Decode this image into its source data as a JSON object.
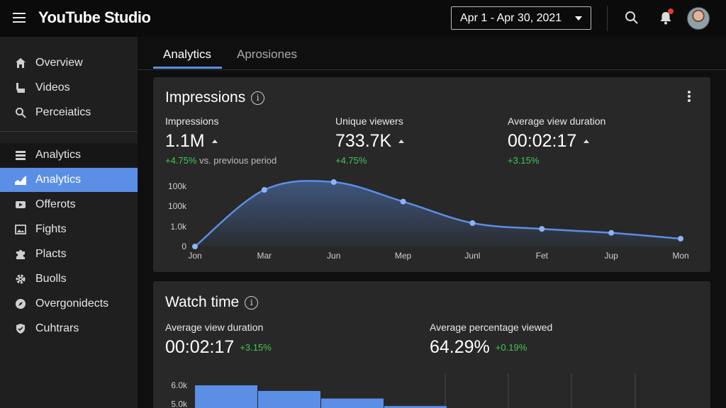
{
  "app": {
    "title": "YouTube Studio"
  },
  "header": {
    "date_range": "Apr 1 - Apr 30, 2021"
  },
  "sidebar": {
    "items": [
      {
        "label": "Overview",
        "icon": "home-icon"
      },
      {
        "label": "Videos",
        "icon": "videos-icon"
      },
      {
        "label": "Perceiatics",
        "icon": "search-icon"
      },
      {
        "label": "Analytics",
        "icon": "table-icon"
      },
      {
        "label": "Analytics",
        "icon": "analytics-icon"
      },
      {
        "label": "Offerots",
        "icon": "video-icon"
      },
      {
        "label": "Fights",
        "icon": "image-icon"
      },
      {
        "label": "Placts",
        "icon": "puzzle-icon"
      },
      {
        "label": "Buolls",
        "icon": "gear-icon"
      },
      {
        "label": "Overgonidects",
        "icon": "compass-icon"
      },
      {
        "label": "Cuhtrars",
        "icon": "shield-icon"
      }
    ]
  },
  "tabs": [
    {
      "label": "Analytics"
    },
    {
      "label": "Aprosiones"
    }
  ],
  "impressions_card": {
    "title": "Impressions",
    "metrics": [
      {
        "label": "Impressions",
        "value": "1.1M",
        "change": "+4.75%",
        "suffix": " vs. previous period"
      },
      {
        "label": "Unique viewers",
        "value": "733.7K",
        "change": "+4.75%",
        "suffix": ""
      },
      {
        "label": "Average view duration",
        "value": "00:02:17",
        "change": "+3.15%",
        "suffix": ""
      }
    ]
  },
  "watch_card": {
    "title": "Watch time",
    "metrics": [
      {
        "label": "Average view duration",
        "value": "00:02:17",
        "change": "+3.15%"
      },
      {
        "label": "Average percentage viewed",
        "value": "64.29%",
        "change": "+0.19%"
      }
    ]
  },
  "chart_data": [
    {
      "type": "area",
      "title": "Impressions",
      "categories": [
        "Jon",
        "Mar",
        "Jun",
        "Mep",
        "Junl",
        "Fet",
        "Jup",
        "Mon"
      ],
      "values": [
        0,
        2.9,
        3.3,
        2.3,
        1.2,
        0.9,
        0.7,
        0.4
      ],
      "y_tick_labels": [
        "0",
        "1.0k",
        "100k",
        "100k"
      ],
      "ylim": [
        0,
        3.3
      ]
    },
    {
      "type": "bar",
      "title": "Watch time",
      "y_tick_labels": [
        "5.0k",
        "6.0k"
      ],
      "values": [
        6.0,
        5.7,
        5.3,
        4.9
      ],
      "ylim": [
        4.0,
        6.3
      ]
    }
  ],
  "colors": {
    "accent": "#5b8fe6",
    "positive": "#44c656",
    "background": "#0f0f0f",
    "card": "#282828",
    "sidebar": "#1f1f1f"
  }
}
